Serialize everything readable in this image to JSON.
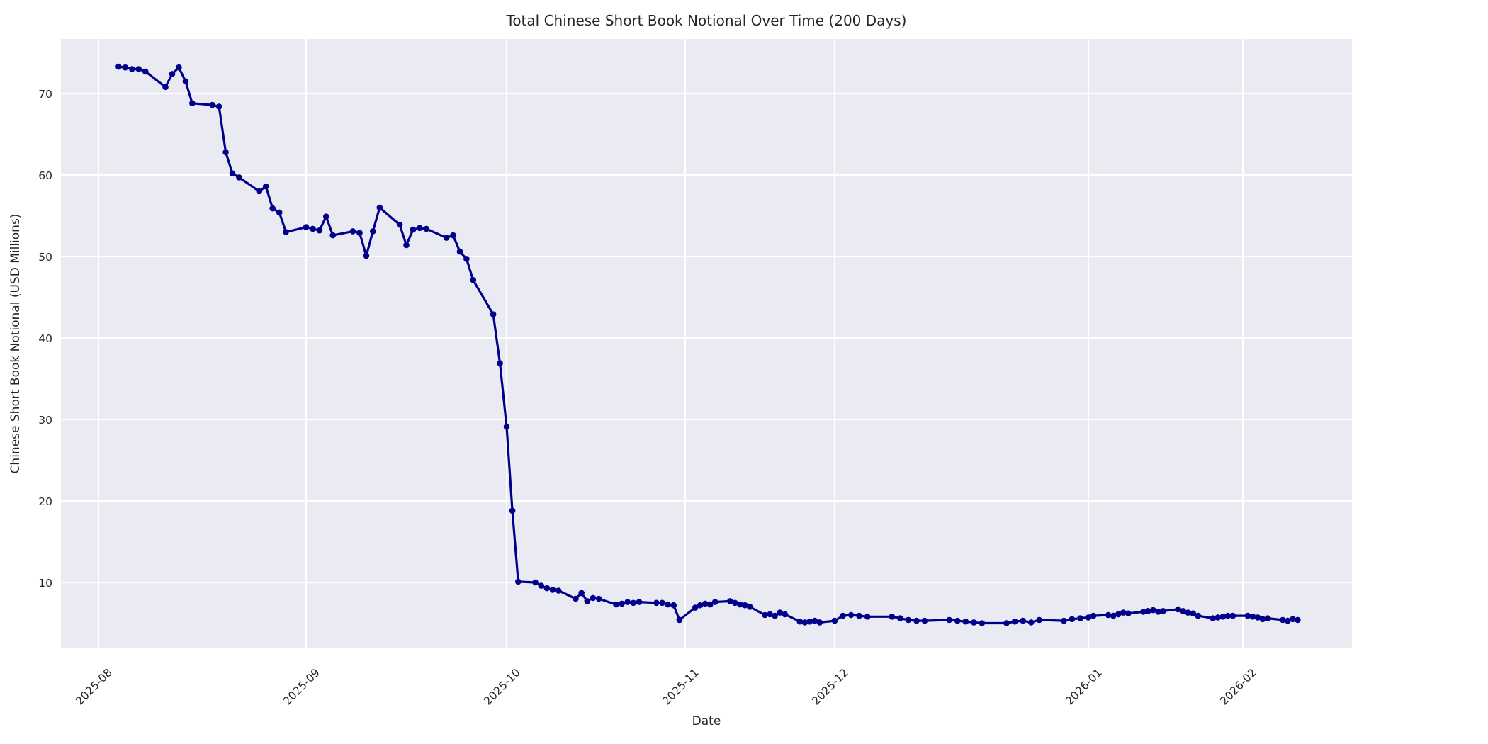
{
  "chart_data": {
    "type": "line",
    "title": "Total Chinese Short Book Notional Over Time (200 Days)",
    "xlabel": "Date",
    "ylabel": "Chinese Short Book Notional (USD Millions)",
    "x_tick_labels": [
      "2025-08",
      "2025-09",
      "2025-10",
      "2025-11",
      "2025-12",
      "2026-01",
      "2026-02"
    ],
    "y_ticks": [
      10,
      20,
      30,
      40,
      50,
      60,
      70
    ],
    "ylim": [
      2.0,
      76.7
    ],
    "xlim": [
      "2025-07-26",
      "2026-02-23"
    ],
    "grid": true,
    "legend": "none",
    "plot_background": "#EAEAF2",
    "gridline_color": "#FFFFFF",
    "series": [
      {
        "name": "Total Chinese Short Book Notional",
        "color": "#00008B",
        "marker": "circle",
        "dates": [
          "2025-08-04",
          "2025-08-05",
          "2025-08-06",
          "2025-08-07",
          "2025-08-08",
          "2025-08-11",
          "2025-08-12",
          "2025-08-13",
          "2025-08-14",
          "2025-08-15",
          "2025-08-18",
          "2025-08-19",
          "2025-08-20",
          "2025-08-21",
          "2025-08-22",
          "2025-08-25",
          "2025-08-26",
          "2025-08-27",
          "2025-08-28",
          "2025-08-29",
          "2025-09-01",
          "2025-09-02",
          "2025-09-03",
          "2025-09-04",
          "2025-09-05",
          "2025-09-08",
          "2025-09-09",
          "2025-09-10",
          "2025-09-11",
          "2025-09-12",
          "2025-09-15",
          "2025-09-16",
          "2025-09-17",
          "2025-09-18",
          "2025-09-19",
          "2025-09-22",
          "2025-09-23",
          "2025-09-24",
          "2025-09-25",
          "2025-09-26",
          "2025-09-29",
          "2025-09-30",
          "2025-10-01",
          "2025-10-02",
          "2025-10-03",
          "2025-10-06",
          "2025-10-07",
          "2025-10-08",
          "2025-10-09",
          "2025-10-10",
          "2025-10-13",
          "2025-10-14",
          "2025-10-15",
          "2025-10-16",
          "2025-10-17",
          "2025-10-20",
          "2025-10-21",
          "2025-10-22",
          "2025-10-23",
          "2025-10-24",
          "2025-10-27",
          "2025-10-28",
          "2025-10-29",
          "2025-10-30",
          "2025-10-31",
          "2025-11-03",
          "2025-11-04",
          "2025-11-05",
          "2025-11-06",
          "2025-11-07",
          "2025-11-10",
          "2025-11-11",
          "2025-11-12",
          "2025-11-13",
          "2025-11-14",
          "2025-11-17",
          "2025-11-18",
          "2025-11-19",
          "2025-11-20",
          "2025-11-21",
          "2025-11-24",
          "2025-11-25",
          "2025-11-26",
          "2025-11-27",
          "2025-11-28",
          "2025-12-01",
          "2025-12-02",
          "2025-12-03",
          "2025-12-04",
          "2025-12-05",
          "2025-12-08",
          "2025-12-09",
          "2025-12-10",
          "2025-12-11",
          "2025-12-12",
          "2025-12-15",
          "2025-12-16",
          "2025-12-17",
          "2025-12-18",
          "2025-12-19",
          "2025-12-22",
          "2025-12-23",
          "2025-12-24",
          "2025-12-25",
          "2025-12-26",
          "2025-12-29",
          "2025-12-30",
          "2025-12-31",
          "2026-01-01",
          "2026-01-02",
          "2026-01-05",
          "2026-01-06",
          "2026-01-07",
          "2026-01-08",
          "2026-01-09",
          "2026-01-12",
          "2026-01-13",
          "2026-01-14",
          "2026-01-15",
          "2026-01-16",
          "2026-01-19",
          "2026-01-20",
          "2026-01-21",
          "2026-01-22",
          "2026-01-23",
          "2026-01-26",
          "2026-01-27",
          "2026-01-28",
          "2026-01-29",
          "2026-01-30",
          "2026-02-02",
          "2026-02-03",
          "2026-02-04",
          "2026-02-05",
          "2026-02-06",
          "2026-02-09",
          "2026-02-10",
          "2026-02-11",
          "2026-02-12"
        ],
        "values": [
          73.3,
          73.2,
          73.0,
          73.0,
          72.7,
          70.8,
          72.4,
          73.2,
          71.5,
          68.8,
          68.6,
          68.4,
          62.8,
          60.2,
          59.7,
          58.0,
          58.6,
          55.9,
          55.4,
          53.0,
          53.6,
          53.4,
          53.2,
          54.9,
          52.6,
          53.1,
          52.9,
          50.1,
          53.1,
          56.0,
          53.9,
          51.4,
          53.3,
          53.5,
          53.4,
          52.3,
          52.6,
          50.6,
          49.7,
          47.1,
          42.9,
          36.9,
          29.1,
          18.8,
          10.1,
          10.0,
          9.6,
          9.3,
          9.1,
          9.0,
          8.0,
          8.7,
          7.7,
          8.1,
          8.0,
          7.3,
          7.4,
          7.6,
          7.5,
          7.6,
          7.5,
          7.5,
          7.3,
          7.2,
          5.4,
          6.9,
          7.2,
          7.4,
          7.3,
          7.6,
          7.7,
          7.5,
          7.3,
          7.2,
          7.0,
          6.0,
          6.1,
          5.9,
          6.3,
          6.1,
          5.2,
          5.1,
          5.2,
          5.3,
          5.1,
          5.3,
          5.9,
          6.0,
          5.9,
          5.8,
          5.8,
          5.6,
          5.4,
          5.3,
          5.3,
          5.4,
          5.3,
          5.2,
          5.1,
          5.0,
          5.0,
          5.2,
          5.3,
          5.1,
          5.4,
          5.3,
          5.5,
          5.6,
          5.7,
          5.9,
          6.0,
          5.9,
          6.1,
          6.3,
          6.2,
          6.4,
          6.5,
          6.6,
          6.4,
          6.5,
          6.7,
          6.5,
          6.3,
          6.2,
          5.9,
          5.6,
          5.7,
          5.8,
          5.9,
          5.9,
          5.9,
          5.8,
          5.7,
          5.5,
          5.6,
          5.4,
          5.3,
          5.5,
          5.4
        ]
      }
    ]
  }
}
